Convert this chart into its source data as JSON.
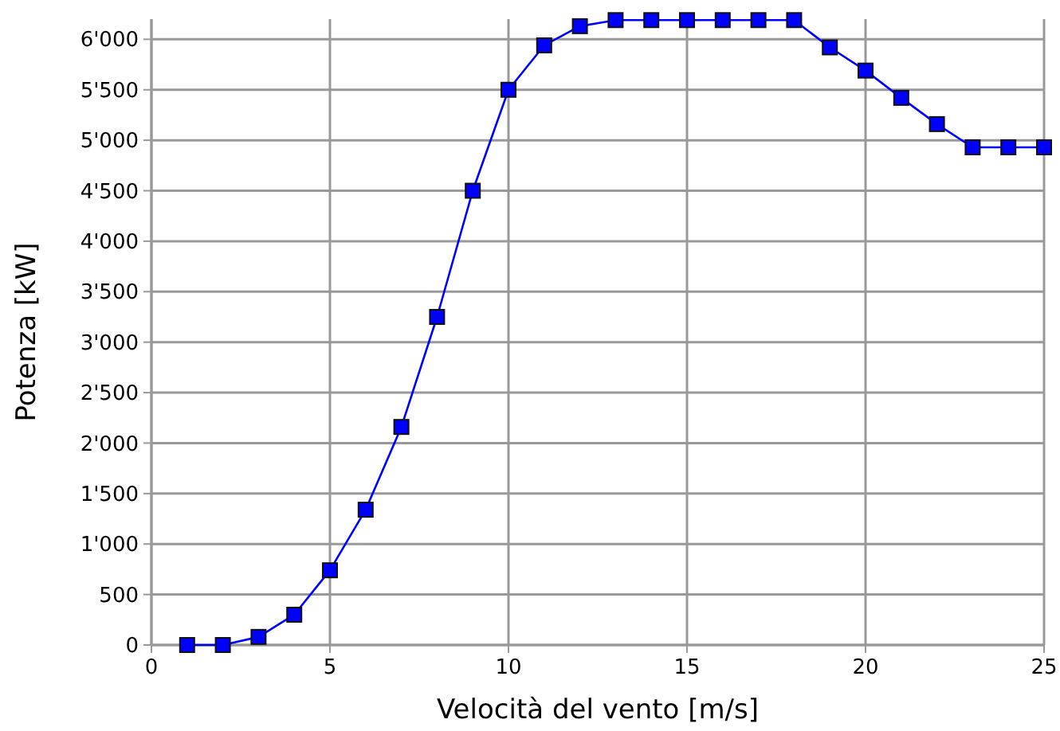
{
  "chart_data": {
    "type": "line",
    "xlabel": "Velocità del vento [m/s]",
    "ylabel": "Potenza [kW]",
    "x": [
      1,
      2,
      3,
      4,
      5,
      6,
      7,
      8,
      9,
      10,
      11,
      12,
      13,
      14,
      15,
      16,
      17,
      18,
      19,
      20,
      21,
      22,
      23,
      24,
      25
    ],
    "series": [
      {
        "color": "#0000ff",
        "values": [
          0,
          0,
          80,
          300,
          740,
          1340,
          2160,
          3250,
          4500,
          5500,
          5940,
          6130,
          6190,
          6190,
          6190,
          6190,
          6190,
          6190,
          5920,
          5690,
          5420,
          5160,
          4930,
          4930,
          4930
        ]
      }
    ],
    "xlim": [
      0,
      25
    ],
    "xticks": [
      0,
      5,
      10,
      15,
      20,
      25
    ],
    "ylim": [
      0,
      6200
    ],
    "yticks": [
      0,
      500,
      {
        "value": 1000,
        "label": "1'000"
      },
      {
        "value": 1500,
        "label": "1'500"
      },
      {
        "value": 2000,
        "label": "2'000"
      },
      {
        "value": 2500,
        "label": "2'500"
      },
      {
        "value": 3000,
        "label": "3'000"
      },
      {
        "value": 3500,
        "label": "3'500"
      },
      {
        "value": 4000,
        "label": "4'000"
      },
      {
        "value": 4500,
        "label": "4'500"
      },
      {
        "value": 5000,
        "label": "5'000"
      },
      {
        "value": 5500,
        "label": "5'500"
      },
      {
        "value": 6000,
        "label": "6'000"
      }
    ],
    "grid": true,
    "marker": "square",
    "line_style": "solid"
  }
}
